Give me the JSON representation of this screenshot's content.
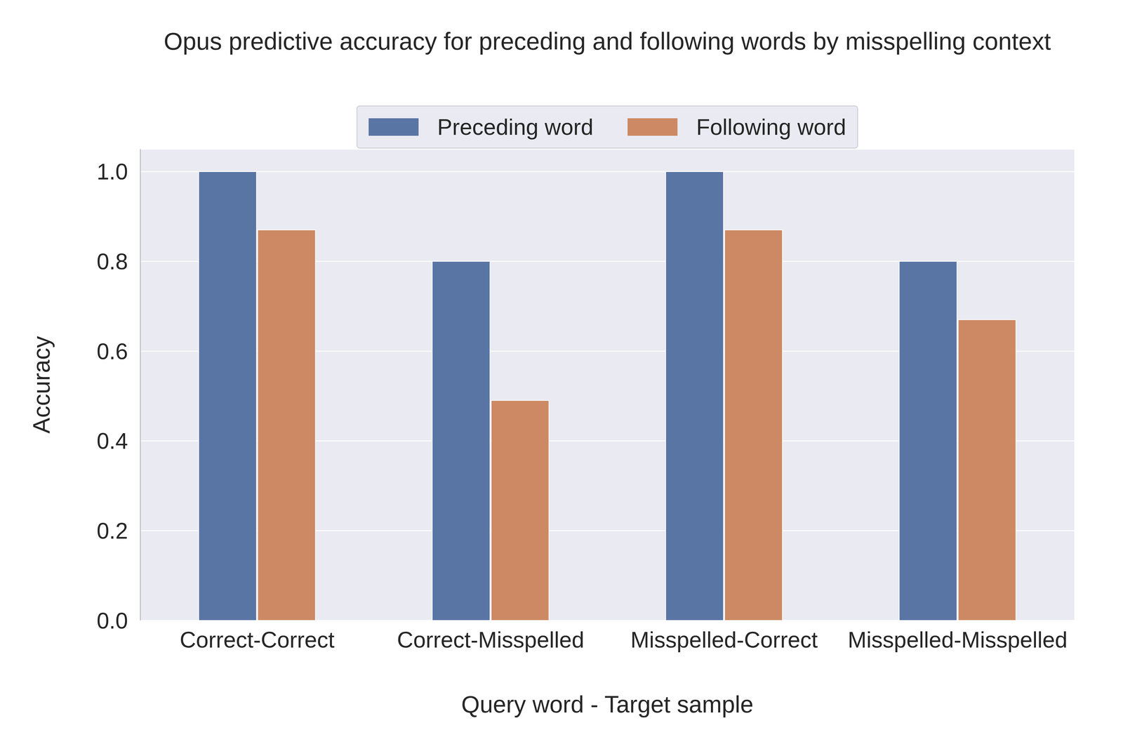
{
  "chart_data": {
    "type": "bar",
    "title": "Opus predictive accuracy for preceding and following words by misspelling context",
    "x_label": "Query word - Target sample",
    "y_label": "Accuracy",
    "categories": [
      "Correct-Correct",
      "Correct-Misspelled",
      "Misspelled-Correct",
      "Misspelled-Misspelled"
    ],
    "series": [
      {
        "name": "Preceding word",
        "color": "#5975a4",
        "values": [
          1.0,
          0.8,
          1.0,
          0.8
        ]
      },
      {
        "name": "Following word",
        "color": "#cc8963",
        "values": [
          0.87,
          0.49,
          0.87,
          0.67
        ]
      }
    ],
    "ylim": [
      0,
      1.05
    ],
    "yticks": [
      {
        "value": 0,
        "label": "0.0"
      },
      0.2,
      0.4,
      0.6,
      0.8,
      {
        "value": 1,
        "label": "1.0"
      }
    ],
    "grid": true,
    "legend": "top"
  }
}
